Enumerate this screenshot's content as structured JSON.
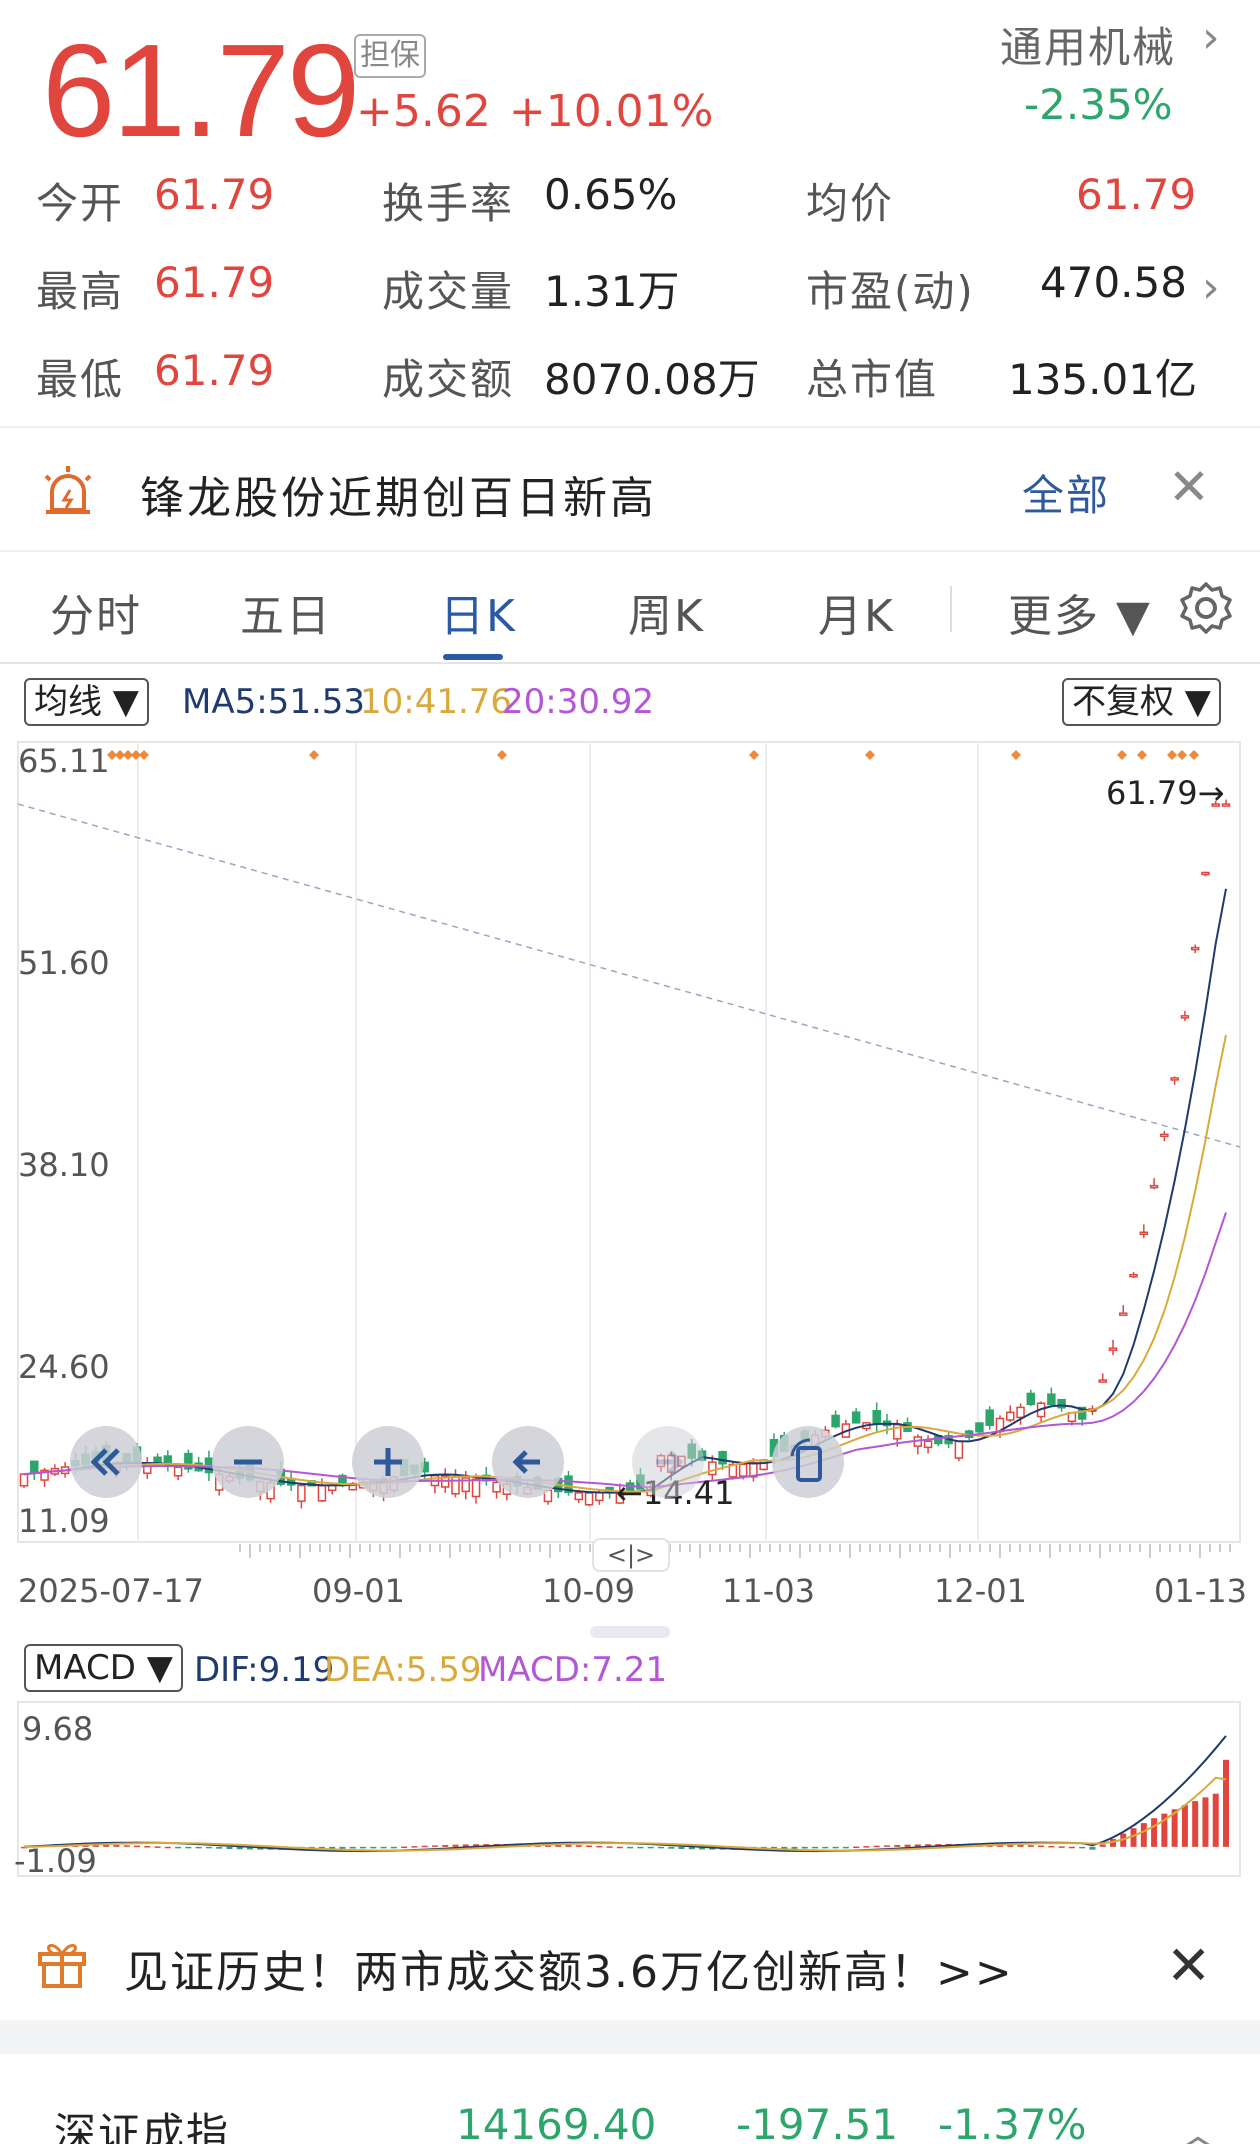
{
  "quote": {
    "price": "61.79",
    "tag": "担保",
    "change": "+5.62",
    "change_pct": "+10.01%",
    "sector_name": "通用机械",
    "sector_change": "-2.35%"
  },
  "stats": [
    {
      "label": "今开",
      "value": "61.79",
      "color": "red"
    },
    {
      "label": "最高",
      "value": "61.79",
      "color": "red"
    },
    {
      "label": "最低",
      "value": "61.79",
      "color": "red"
    },
    {
      "label": "换手率",
      "value": "0.65%"
    },
    {
      "label": "成交量",
      "value": "1.31万"
    },
    {
      "label": "成交额",
      "value": "8070.08万"
    },
    {
      "label": "均价",
      "value": "61.79",
      "color": "red"
    },
    {
      "label": "市盈(动)",
      "value": "470.58"
    },
    {
      "label": "总市值",
      "value": "135.01亿"
    }
  ],
  "news": {
    "text": "锋龙股份近期创百日新高",
    "all_label": "全部"
  },
  "tabs": [
    "分时",
    "五日",
    "日K",
    "周K",
    "月K",
    "更多 ▼"
  ],
  "active_tab": "日K",
  "kline": {
    "ma_selector": "均线 ▼",
    "ma5": "MA5:51.53",
    "ma10": "10:41.76",
    "ma20": "20:30.92",
    "adjust_selector": "不复权 ▼",
    "y_ticks": [
      "65.11",
      "51.60",
      "38.10",
      "24.60",
      "11.09"
    ],
    "x_ticks": [
      "2025-07-17",
      "09-01",
      "10-09",
      "11-03",
      "12-01",
      "01-13"
    ],
    "last_price_label": "61.79→",
    "low_label": "←14.41",
    "colors": {
      "ma5": "#1f3a6e",
      "ma10": "#d9a93c",
      "ma20": "#b457d6",
      "up": "#e0463e",
      "down": "#2da66c",
      "marker": "#f0883a"
    }
  },
  "macd": {
    "selector": "MACD ▼",
    "dif": "DIF:9.19",
    "dea": "DEA:5.59",
    "macd": "MACD:7.21",
    "y_ticks": [
      "9.68",
      "-1.09"
    ]
  },
  "chart_data": {
    "type": "candlestick",
    "x_range": [
      "2025-07-17",
      "2026-01-13"
    ],
    "ylim": [
      11.09,
      65.11
    ],
    "last_close": 61.79,
    "period_low": 14.41,
    "ma": {
      "MA5": 51.53,
      "MA10": 41.76,
      "MA20": 30.92
    },
    "macd": {
      "DIF": 9.19,
      "DEA": 5.59,
      "MACD": 7.21,
      "ylim": [
        -1.09,
        9.68
      ]
    }
  },
  "banner": {
    "text": "见证历史！两市成交额3.6万亿创新高！>>"
  },
  "index": {
    "name": "深证成指",
    "value": "14169.40",
    "change": "-197.51",
    "change_pct": "-1.37%"
  }
}
